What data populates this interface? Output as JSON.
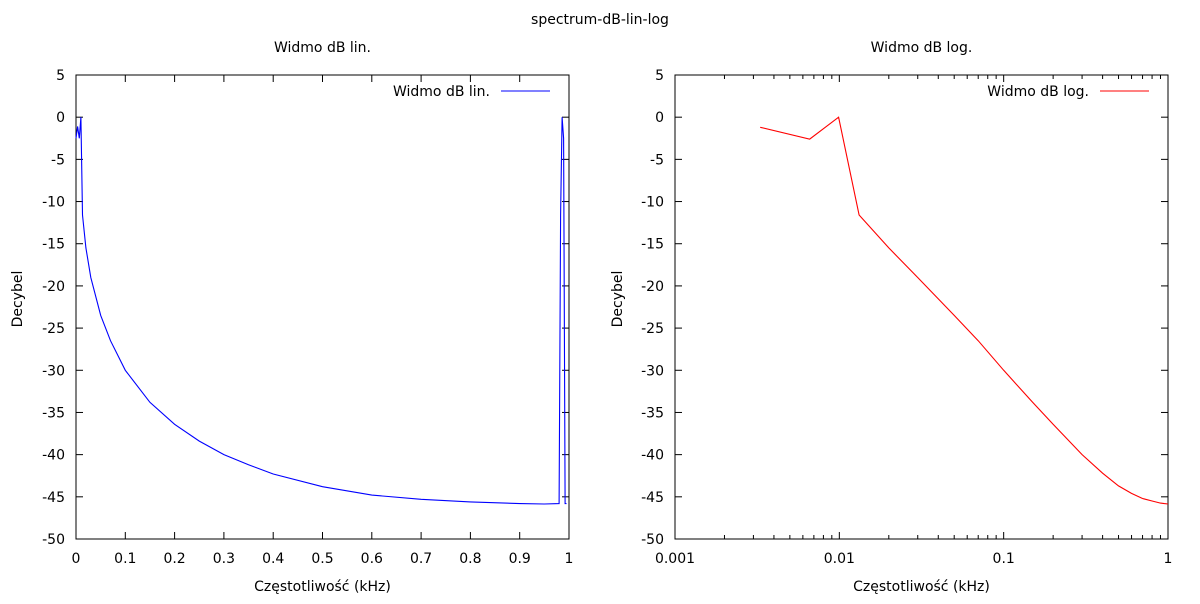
{
  "page": {
    "title": "spectrum-dB-lin-log"
  },
  "chart_data": [
    {
      "type": "line",
      "title": "Widmo dB lin.",
      "xlabel": "Częstotliwość (kHz)",
      "ylabel": "Decybel",
      "xscale": "linear",
      "xlim": [
        0,
        1
      ],
      "ylim": [
        -50,
        5
      ],
      "xticks": [
        0,
        0.1,
        0.2,
        0.3,
        0.4,
        0.5,
        0.6,
        0.7,
        0.8,
        0.9,
        1
      ],
      "xtick_labels": [
        "0",
        "0.1",
        "0.2",
        "0.3",
        "0.4",
        "0.5",
        "0.6",
        "0.7",
        "0.8",
        "0.9",
        "1"
      ],
      "yticks": [
        5,
        0,
        -5,
        -10,
        -15,
        -20,
        -25,
        -30,
        -35,
        -40,
        -45,
        -50
      ],
      "ytick_labels": [
        "5",
        "0",
        "-5",
        "-10",
        "-15",
        "-20",
        "-25",
        "-30",
        "-35",
        "-40",
        "-45",
        "-50"
      ],
      "grid": false,
      "legend_position": "top-right",
      "series": [
        {
          "name": "Widmo dB lin.",
          "color": "#0000ff",
          "x": [
            0,
            0.0033,
            0.0066,
            0.0099,
            0.0132,
            0.02,
            0.03,
            0.05,
            0.07,
            0.1,
            0.15,
            0.2,
            0.25,
            0.3,
            0.35,
            0.4,
            0.5,
            0.6,
            0.7,
            0.8,
            0.9,
            0.95,
            0.98,
            0.983,
            0.986,
            0.989,
            0.992,
            0.995
          ],
          "y": [
            -2.5,
            -1.1,
            -2.5,
            0,
            -11.6,
            -15.5,
            -19,
            -23.5,
            -26.5,
            -30,
            -33.8,
            -36.4,
            -38.4,
            -40,
            -41.2,
            -42.3,
            -43.8,
            -44.8,
            -45.3,
            -45.6,
            -45.8,
            -45.85,
            -45.8,
            -11.6,
            0,
            -2.5,
            -45.8,
            -45.8
          ]
        }
      ]
    },
    {
      "type": "line",
      "title": "Widmo dB log.",
      "xlabel": "Częstotliwość (kHz)",
      "ylabel": "Decybel",
      "xscale": "log",
      "xlim": [
        0.001,
        1
      ],
      "ylim": [
        -50,
        5
      ],
      "xticks": [
        0.001,
        0.01,
        0.1,
        1
      ],
      "xtick_labels": [
        "0.001",
        "0.01",
        "0.1",
        "1"
      ],
      "yticks": [
        5,
        0,
        -5,
        -10,
        -15,
        -20,
        -25,
        -30,
        -35,
        -40,
        -45,
        -50
      ],
      "ytick_labels": [
        "5",
        "0",
        "-5",
        "-10",
        "-15",
        "-20",
        "-25",
        "-30",
        "-35",
        "-40",
        "-45",
        "-50"
      ],
      "grid": false,
      "legend_position": "top-right",
      "series": [
        {
          "name": "Widmo dB log.",
          "color": "#ff0000",
          "x": [
            0.0033,
            0.0066,
            0.0099,
            0.0132,
            0.02,
            0.03,
            0.05,
            0.07,
            0.1,
            0.15,
            0.2,
            0.3,
            0.4,
            0.5,
            0.6,
            0.7,
            0.8,
            0.9,
            0.95,
            1
          ],
          "y": [
            -1.2,
            -2.6,
            0,
            -11.6,
            -15.5,
            -19,
            -23.5,
            -26.5,
            -30,
            -33.8,
            -36.4,
            -40,
            -42.2,
            -43.7,
            -44.6,
            -45.2,
            -45.5,
            -45.75,
            -45.8,
            -45.85
          ]
        }
      ]
    }
  ]
}
